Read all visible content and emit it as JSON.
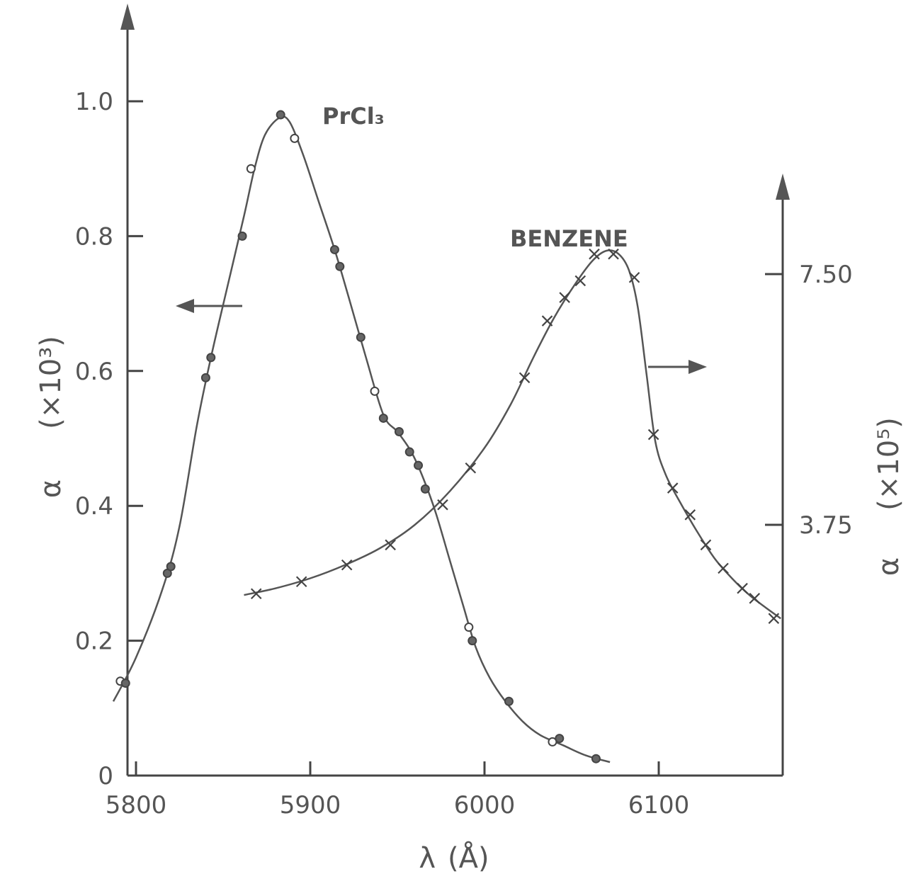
{
  "chart_data": {
    "type": "scatter",
    "x_axis": {
      "label_symbol": "λ",
      "label_unit": "(Å)",
      "ticks": [
        5800,
        5900,
        6000,
        6100
      ],
      "range": [
        5780,
        6180
      ]
    },
    "y_left": {
      "label_symbol": "α",
      "label_scale": "(×10³)",
      "ticks": [
        0,
        0.2,
        0.4,
        0.6,
        0.8,
        1.0
      ],
      "tick_labels": [
        "0",
        "0.2",
        "0.4",
        "0.6",
        "0.8",
        "1.0"
      ],
      "range": [
        0,
        1.1
      ]
    },
    "y_right": {
      "label_symbol": "α",
      "label_scale": "(×10⁵)",
      "ticks": [
        3.75,
        7.5
      ],
      "tick_labels": [
        "3.75",
        "7.50"
      ],
      "range": [
        0,
        9.0
      ]
    },
    "series": [
      {
        "name": "PrCl₃",
        "axis": "left",
        "marker": "circle",
        "points": [
          {
            "x": 5791,
            "y": 0.14,
            "filled": false
          },
          {
            "x": 5794,
            "y": 0.137,
            "filled": true
          },
          {
            "x": 5818,
            "y": 0.3,
            "filled": true
          },
          {
            "x": 5820,
            "y": 0.31,
            "filled": true
          },
          {
            "x": 5840,
            "y": 0.59,
            "filled": true
          },
          {
            "x": 5843,
            "y": 0.62,
            "filled": true
          },
          {
            "x": 5861,
            "y": 0.8,
            "filled": true
          },
          {
            "x": 5866,
            "y": 0.9,
            "filled": false
          },
          {
            "x": 5883,
            "y": 0.98,
            "filled": true
          },
          {
            "x": 5891,
            "y": 0.945,
            "filled": false
          },
          {
            "x": 5914,
            "y": 0.78,
            "filled": true
          },
          {
            "x": 5917,
            "y": 0.755,
            "filled": true
          },
          {
            "x": 5929,
            "y": 0.65,
            "filled": true
          },
          {
            "x": 5937,
            "y": 0.57,
            "filled": false
          },
          {
            "x": 5942,
            "y": 0.53,
            "filled": true
          },
          {
            "x": 5951,
            "y": 0.51,
            "filled": true
          },
          {
            "x": 5957,
            "y": 0.48,
            "filled": true
          },
          {
            "x": 5962,
            "y": 0.46,
            "filled": true
          },
          {
            "x": 5966,
            "y": 0.425,
            "filled": true
          },
          {
            "x": 5991,
            "y": 0.22,
            "filled": false
          },
          {
            "x": 5993,
            "y": 0.2,
            "filled": true
          },
          {
            "x": 6014,
            "y": 0.11,
            "filled": true
          },
          {
            "x": 6039,
            "y": 0.05,
            "filled": false
          },
          {
            "x": 6043,
            "y": 0.055,
            "filled": true
          },
          {
            "x": 6064,
            "y": 0.025,
            "filled": true
          }
        ],
        "curve": [
          [
            5787,
            0.11
          ],
          [
            5800,
            0.175
          ],
          [
            5815,
            0.275
          ],
          [
            5825,
            0.37
          ],
          [
            5835,
            0.52
          ],
          [
            5843,
            0.62
          ],
          [
            5852,
            0.72
          ],
          [
            5862,
            0.83
          ],
          [
            5868,
            0.9
          ],
          [
            5874,
            0.95
          ],
          [
            5882,
            0.975
          ],
          [
            5888,
            0.97
          ],
          [
            5896,
            0.92
          ],
          [
            5905,
            0.85
          ],
          [
            5914,
            0.78
          ],
          [
            5922,
            0.71
          ],
          [
            5932,
            0.62
          ],
          [
            5942,
            0.535
          ],
          [
            5950,
            0.51
          ],
          [
            5958,
            0.48
          ],
          [
            5965,
            0.44
          ],
          [
            5972,
            0.39
          ],
          [
            5980,
            0.32
          ],
          [
            5988,
            0.25
          ],
          [
            5995,
            0.19
          ],
          [
            6003,
            0.145
          ],
          [
            6012,
            0.11
          ],
          [
            6022,
            0.08
          ],
          [
            6032,
            0.06
          ],
          [
            6045,
            0.045
          ],
          [
            6058,
            0.03
          ],
          [
            6072,
            0.02
          ]
        ]
      },
      {
        "name": "BENZENE",
        "axis": "right",
        "marker": "x",
        "points": [
          {
            "x": 5869,
            "y": 2.72
          },
          {
            "x": 5895,
            "y": 2.9
          },
          {
            "x": 5921,
            "y": 3.15
          },
          {
            "x": 5946,
            "y": 3.45
          },
          {
            "x": 5976,
            "y": 4.05
          },
          {
            "x": 5992,
            "y": 4.6
          },
          {
            "x": 6023,
            "y": 5.95
          },
          {
            "x": 6036,
            "y": 6.8
          },
          {
            "x": 6046,
            "y": 7.15
          },
          {
            "x": 6055,
            "y": 7.4
          },
          {
            "x": 6063,
            "y": 7.8
          },
          {
            "x": 6074,
            "y": 7.8
          },
          {
            "x": 6086,
            "y": 7.45
          },
          {
            "x": 6097,
            "y": 5.1
          },
          {
            "x": 6108,
            "y": 4.3
          },
          {
            "x": 6118,
            "y": 3.9
          },
          {
            "x": 6127,
            "y": 3.45
          },
          {
            "x": 6137,
            "y": 3.1
          },
          {
            "x": 6148,
            "y": 2.8
          },
          {
            "x": 6155,
            "y": 2.65
          },
          {
            "x": 6166,
            "y": 2.35
          }
        ],
        "curve": [
          [
            5862,
            2.7
          ],
          [
            5880,
            2.8
          ],
          [
            5900,
            2.95
          ],
          [
            5920,
            3.15
          ],
          [
            5940,
            3.4
          ],
          [
            5960,
            3.75
          ],
          [
            5980,
            4.25
          ],
          [
            6000,
            4.9
          ],
          [
            6015,
            5.55
          ],
          [
            6028,
            6.25
          ],
          [
            6040,
            6.85
          ],
          [
            6052,
            7.35
          ],
          [
            6062,
            7.7
          ],
          [
            6070,
            7.85
          ],
          [
            6077,
            7.8
          ],
          [
            6083,
            7.55
          ],
          [
            6088,
            7.0
          ],
          [
            6093,
            6.0
          ],
          [
            6098,
            5.0
          ],
          [
            6104,
            4.5
          ],
          [
            6112,
            4.1
          ],
          [
            6122,
            3.65
          ],
          [
            6132,
            3.25
          ],
          [
            6142,
            2.95
          ],
          [
            6152,
            2.7
          ],
          [
            6162,
            2.5
          ],
          [
            6170,
            2.35
          ]
        ]
      }
    ],
    "annotations": [
      {
        "label": "PrCl₃",
        "series": "PrCl₃",
        "points_to": "left-axis"
      },
      {
        "label": "BENZENE",
        "series": "BENZENE",
        "points_to": "right-axis"
      }
    ]
  }
}
